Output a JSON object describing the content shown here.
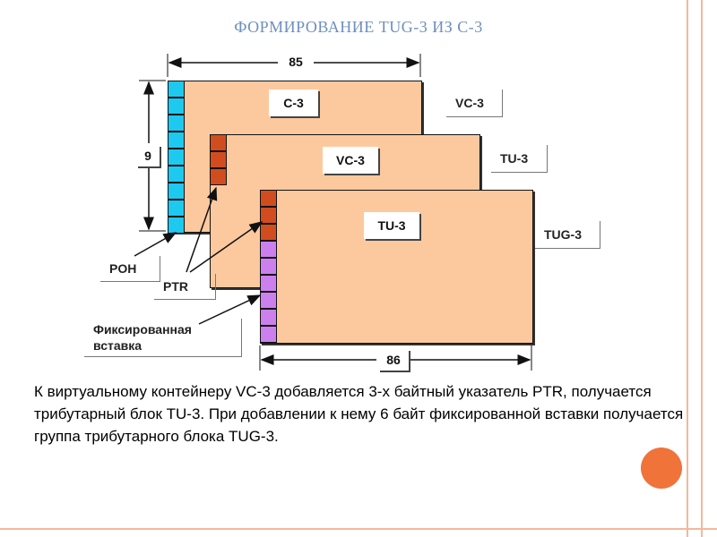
{
  "title": "ФОРМИРОВАНИЕ TUG-3 ИЗ C-3",
  "dimensions": {
    "width": "85",
    "height": "9",
    "bottom_width": "86"
  },
  "frames": {
    "c3": {
      "label": "C-3",
      "outer_label": "VC-3",
      "color": "#fcc99f",
      "poh_color": "#1ec9ef"
    },
    "vc3": {
      "label": "VC-3",
      "outer_label": "TU-3",
      "ptr_color": "#d14d1f"
    },
    "tu3": {
      "label": "TU-3",
      "outer_label": "TUG-3",
      "stuffing_color": "#cc80ee"
    }
  },
  "callouts": {
    "poh": "POH",
    "ptr": "PTR",
    "fixed_stuffing": "Фиксированная вставка"
  },
  "caption": "К виртуальному контейнеру VC-3 добавляется 3-х байтный указатель PTR, получается трибутарный блок TU-3. При добавлении к нему 6 байт фиксированной вставки получается группа трибутарного блока TUG-3.",
  "accent": "#f0733a"
}
